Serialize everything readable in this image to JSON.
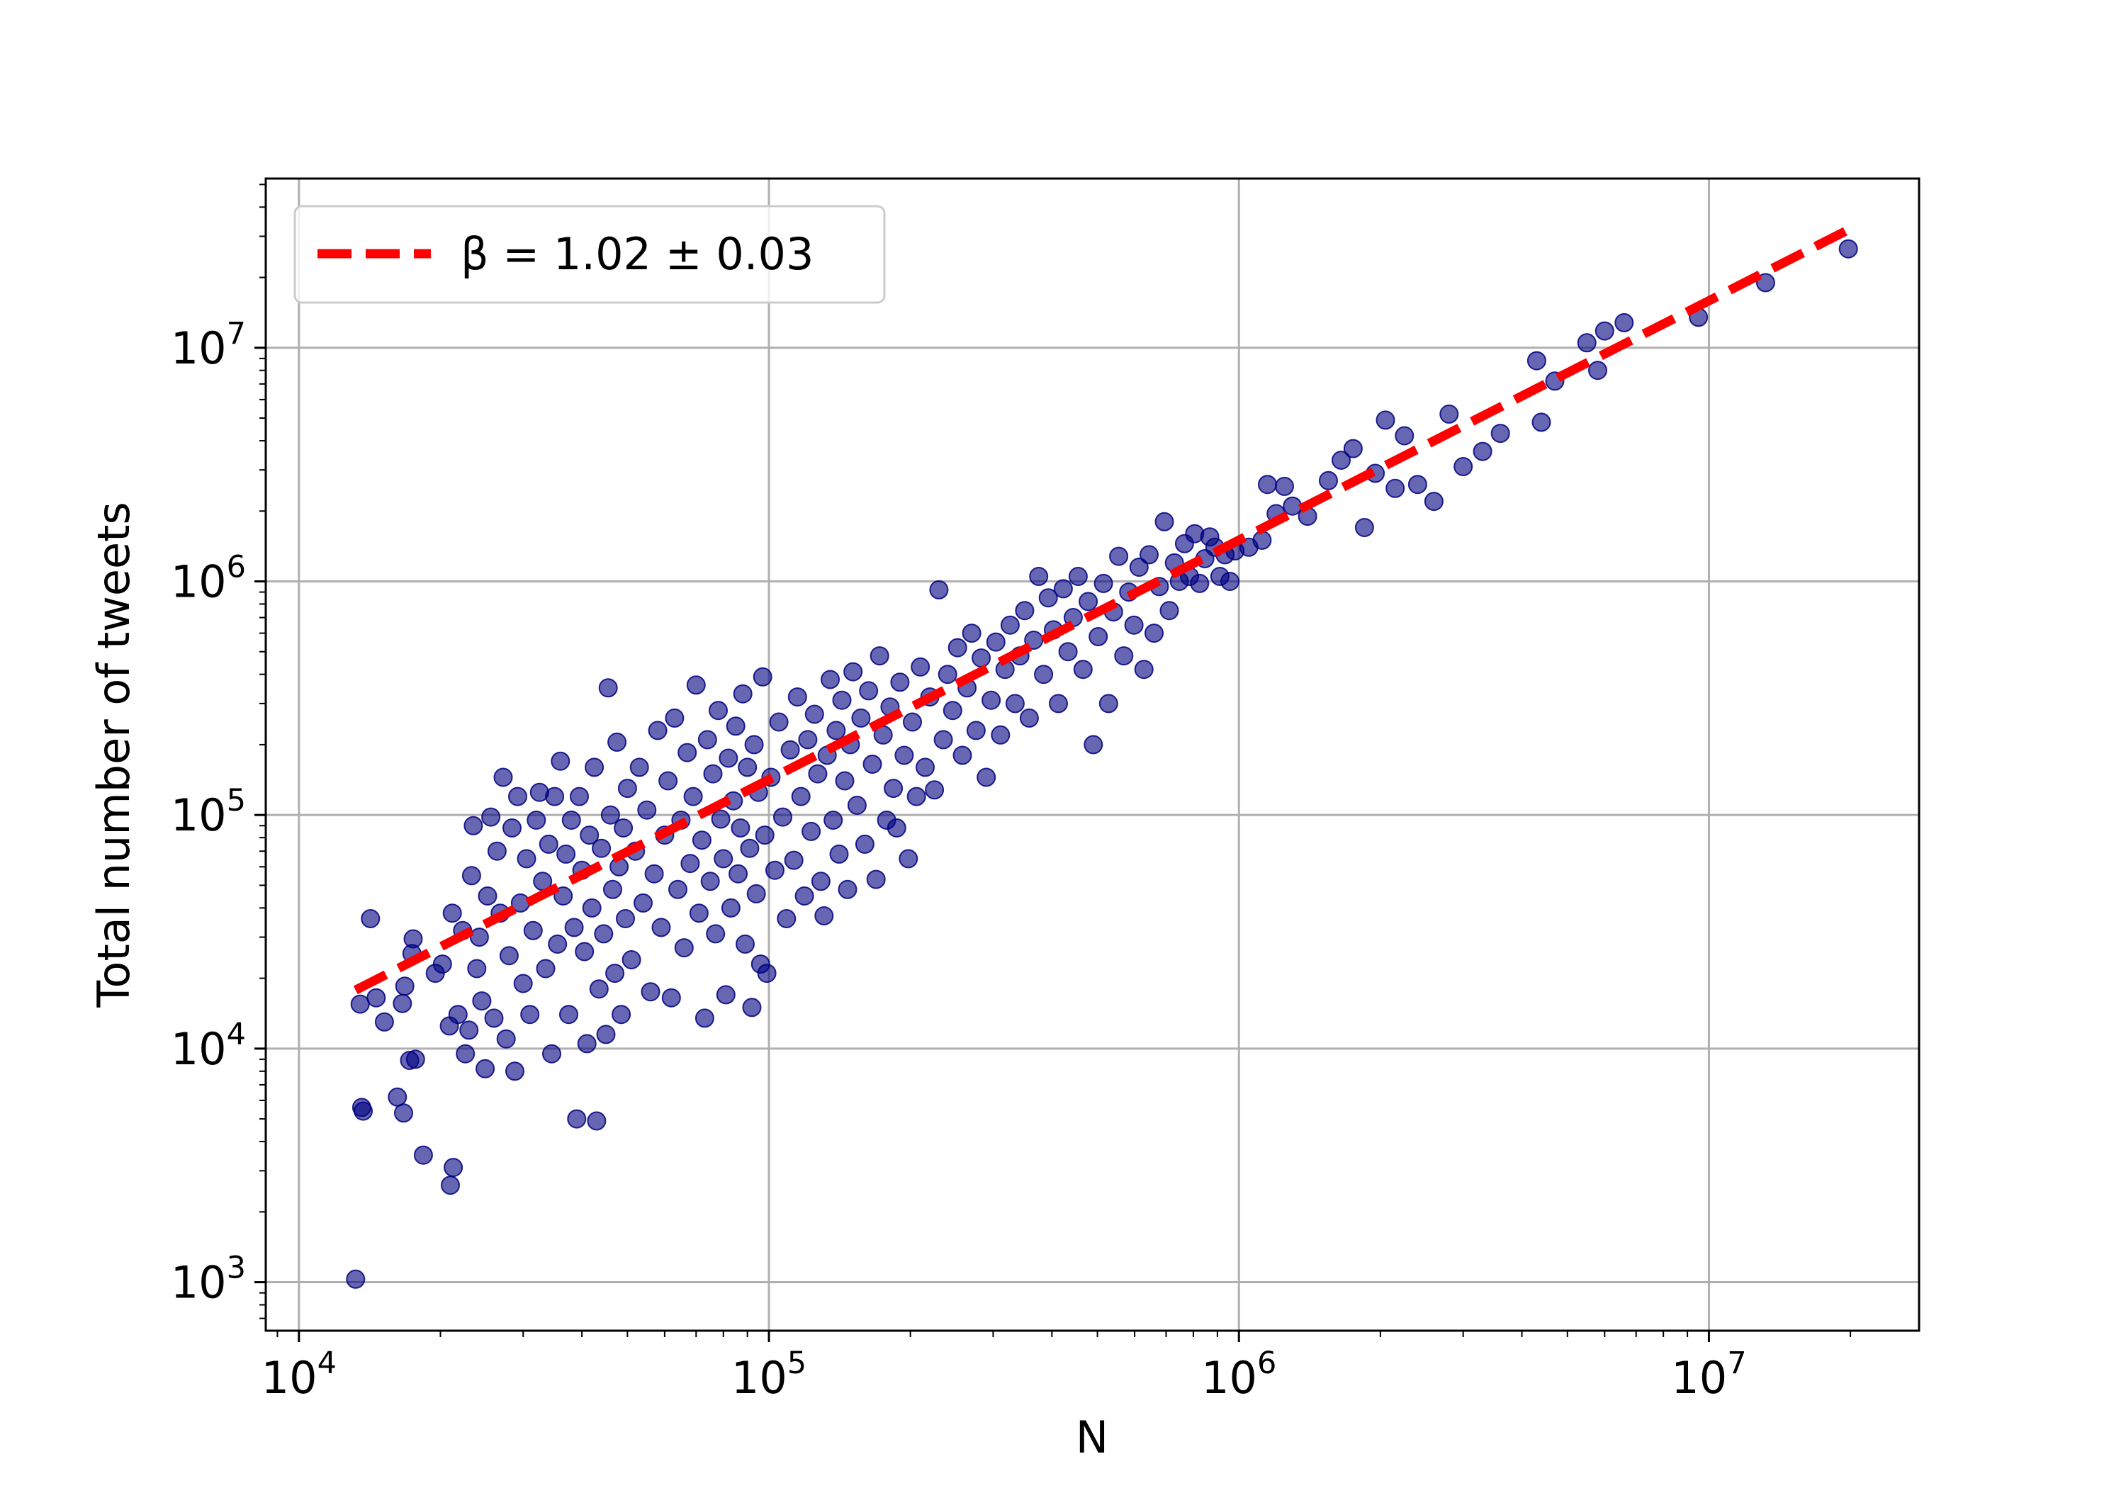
{
  "chart_data": {
    "type": "scatter",
    "xlabel": "N",
    "ylabel": "Total number of tweets",
    "xscale": "log",
    "yscale": "log",
    "xlim": [
      8500,
      28000000
    ],
    "ylim": [
      620,
      53000000
    ],
    "grid": true,
    "legend_position": "top-left",
    "x_ticks": [
      {
        "label": "10",
        "exp": "4",
        "value": 10000
      },
      {
        "label": "10",
        "exp": "5",
        "value": 100000
      },
      {
        "label": "10",
        "exp": "6",
        "value": 1000000
      },
      {
        "label": "10",
        "exp": "7",
        "value": 10000000
      }
    ],
    "y_ticks": [
      {
        "label": "10",
        "exp": "3",
        "value": 1000
      },
      {
        "label": "10",
        "exp": "4",
        "value": 10000
      },
      {
        "label": "10",
        "exp": "5",
        "value": 100000
      },
      {
        "label": "10",
        "exp": "6",
        "value": 1000000
      },
      {
        "label": "10",
        "exp": "7",
        "value": 10000000
      }
    ],
    "fit_line": {
      "label": "β = 1.02 ± 0.03",
      "color": "#ff0000",
      "style": "dashed",
      "x": [
        13200,
        19500000
      ],
      "y": [
        17800,
        31500000
      ]
    },
    "point_color": "#000080",
    "points": [
      [
        13200,
        1030
      ],
      [
        13500,
        15500
      ],
      [
        13600,
        5600
      ],
      [
        13700,
        5400
      ],
      [
        14200,
        36000
      ],
      [
        14600,
        16500
      ],
      [
        15200,
        13000
      ],
      [
        16200,
        6200
      ],
      [
        16600,
        15600
      ],
      [
        16800,
        18500
      ],
      [
        16700,
        5300
      ],
      [
        17200,
        8900
      ],
      [
        17400,
        25500
      ],
      [
        17500,
        29500
      ],
      [
        17700,
        9000
      ],
      [
        18400,
        3500
      ],
      [
        19500,
        21000
      ],
      [
        20200,
        23000
      ],
      [
        20900,
        12500
      ],
      [
        21000,
        2600
      ],
      [
        21200,
        38000
      ],
      [
        21300,
        3100
      ],
      [
        21800,
        14000
      ],
      [
        22300,
        32000
      ],
      [
        22600,
        9500
      ],
      [
        23000,
        12000
      ],
      [
        23300,
        55000
      ],
      [
        23500,
        90000
      ],
      [
        23900,
        22000
      ],
      [
        24200,
        30000
      ],
      [
        24500,
        16000
      ],
      [
        24900,
        8200
      ],
      [
        25200,
        45000
      ],
      [
        25600,
        98000
      ],
      [
        26000,
        13500
      ],
      [
        26400,
        70000
      ],
      [
        26800,
        38000
      ],
      [
        27200,
        145000
      ],
      [
        27600,
        11000
      ],
      [
        28000,
        25000
      ],
      [
        28400,
        88000
      ],
      [
        28800,
        8000
      ],
      [
        29200,
        120000
      ],
      [
        29600,
        42000
      ],
      [
        30000,
        19000
      ],
      [
        30500,
        65000
      ],
      [
        31000,
        14000
      ],
      [
        31500,
        32000
      ],
      [
        32000,
        95000
      ],
      [
        32500,
        125000
      ],
      [
        33000,
        52000
      ],
      [
        33500,
        22000
      ],
      [
        34000,
        75000
      ],
      [
        34500,
        9500
      ],
      [
        35000,
        120000
      ],
      [
        35500,
        28000
      ],
      [
        36000,
        170000
      ],
      [
        36500,
        45000
      ],
      [
        37000,
        68000
      ],
      [
        37500,
        14000
      ],
      [
        38000,
        95000
      ],
      [
        38500,
        33000
      ],
      [
        39000,
        5000
      ],
      [
        39500,
        120000
      ],
      [
        40000,
        58000
      ],
      [
        40500,
        26000
      ],
      [
        41000,
        10500
      ],
      [
        41500,
        82000
      ],
      [
        42000,
        40000
      ],
      [
        42500,
        160000
      ],
      [
        43000,
        4900
      ],
      [
        43500,
        18000
      ],
      [
        44000,
        72000
      ],
      [
        44500,
        31000
      ],
      [
        45000,
        11500
      ],
      [
        45500,
        350000
      ],
      [
        46000,
        100000
      ],
      [
        46500,
        48000
      ],
      [
        47000,
        21000
      ],
      [
        47500,
        205000
      ],
      [
        48000,
        60000
      ],
      [
        48500,
        14000
      ],
      [
        49000,
        88000
      ],
      [
        49500,
        36000
      ],
      [
        50000,
        130000
      ],
      [
        51000,
        24000
      ],
      [
        52000,
        70000
      ],
      [
        53000,
        160000
      ],
      [
        54000,
        42000
      ],
      [
        55000,
        105000
      ],
      [
        56000,
        17500
      ],
      [
        57000,
        56000
      ],
      [
        58000,
        230000
      ],
      [
        59000,
        33000
      ],
      [
        60000,
        82000
      ],
      [
        61000,
        140000
      ],
      [
        62000,
        16500
      ],
      [
        63000,
        260000
      ],
      [
        64000,
        48000
      ],
      [
        65000,
        95000
      ],
      [
        66000,
        27000
      ],
      [
        67000,
        185000
      ],
      [
        68000,
        62000
      ],
      [
        69000,
        120000
      ],
      [
        70000,
        360000
      ],
      [
        71000,
        38000
      ],
      [
        72000,
        78000
      ],
      [
        73000,
        13500
      ],
      [
        74000,
        210000
      ],
      [
        75000,
        52000
      ],
      [
        76000,
        150000
      ],
      [
        77000,
        31000
      ],
      [
        78000,
        280000
      ],
      [
        79000,
        96000
      ],
      [
        80000,
        65000
      ],
      [
        81000,
        17000
      ],
      [
        82000,
        175000
      ],
      [
        83000,
        40000
      ],
      [
        84000,
        115000
      ],
      [
        85000,
        240000
      ],
      [
        86000,
        56000
      ],
      [
        87000,
        88000
      ],
      [
        88000,
        330000
      ],
      [
        89000,
        28000
      ],
      [
        90000,
        160000
      ],
      [
        91000,
        72000
      ],
      [
        92000,
        15000
      ],
      [
        93000,
        200000
      ],
      [
        94000,
        46000
      ],
      [
        95000,
        125000
      ],
      [
        96000,
        23000
      ],
      [
        97000,
        390000
      ],
      [
        98000,
        82000
      ],
      [
        99000,
        21000
      ],
      [
        101000,
        145000
      ],
      [
        103000,
        58000
      ],
      [
        105000,
        250000
      ],
      [
        107000,
        98000
      ],
      [
        109000,
        36000
      ],
      [
        111000,
        190000
      ],
      [
        113000,
        64000
      ],
      [
        115000,
        320000
      ],
      [
        117000,
        120000
      ],
      [
        119000,
        45000
      ],
      [
        121000,
        210000
      ],
      [
        123000,
        85000
      ],
      [
        125000,
        270000
      ],
      [
        127000,
        150000
      ],
      [
        129000,
        52000
      ],
      [
        131000,
        37000
      ],
      [
        133000,
        180000
      ],
      [
        135000,
        380000
      ],
      [
        137000,
        95000
      ],
      [
        139000,
        230000
      ],
      [
        141000,
        68000
      ],
      [
        143000,
        310000
      ],
      [
        145000,
        140000
      ],
      [
        147000,
        48000
      ],
      [
        149000,
        200000
      ],
      [
        151000,
        410000
      ],
      [
        154000,
        110000
      ],
      [
        157000,
        260000
      ],
      [
        160000,
        75000
      ],
      [
        163000,
        340000
      ],
      [
        166000,
        165000
      ],
      [
        169000,
        53000
      ],
      [
        172000,
        480000
      ],
      [
        175000,
        220000
      ],
      [
        178000,
        95000
      ],
      [
        181000,
        290000
      ],
      [
        184000,
        130000
      ],
      [
        187000,
        88000
      ],
      [
        190000,
        370000
      ],
      [
        194000,
        180000
      ],
      [
        198000,
        65000
      ],
      [
        202000,
        250000
      ],
      [
        206000,
        120000
      ],
      [
        210000,
        430000
      ],
      [
        215000,
        160000
      ],
      [
        220000,
        320000
      ],
      [
        225000,
        128000
      ],
      [
        230000,
        920000
      ],
      [
        235000,
        210000
      ],
      [
        240000,
        400000
      ],
      [
        246000,
        280000
      ],
      [
        252000,
        520000
      ],
      [
        258000,
        180000
      ],
      [
        264000,
        350000
      ],
      [
        270000,
        600000
      ],
      [
        276000,
        230000
      ],
      [
        283000,
        470000
      ],
      [
        290000,
        145000
      ],
      [
        297000,
        310000
      ],
      [
        304000,
        550000
      ],
      [
        311000,
        220000
      ],
      [
        318000,
        420000
      ],
      [
        326000,
        650000
      ],
      [
        334000,
        300000
      ],
      [
        342000,
        480000
      ],
      [
        350000,
        750000
      ],
      [
        358000,
        260000
      ],
      [
        366000,
        560000
      ],
      [
        375000,
        1050000
      ],
      [
        384000,
        400000
      ],
      [
        393000,
        850000
      ],
      [
        403000,
        620000
      ],
      [
        413000,
        300000
      ],
      [
        423000,
        930000
      ],
      [
        433000,
        500000
      ],
      [
        444000,
        700000
      ],
      [
        455000,
        1050000
      ],
      [
        466000,
        420000
      ],
      [
        478000,
        820000
      ],
      [
        490000,
        200000
      ],
      [
        502000,
        580000
      ],
      [
        515000,
        980000
      ],
      [
        528000,
        300000
      ],
      [
        541000,
        740000
      ],
      [
        555000,
        1280000
      ],
      [
        569000,
        480000
      ],
      [
        583000,
        900000
      ],
      [
        598000,
        650000
      ],
      [
        613000,
        1150000
      ],
      [
        628000,
        420000
      ],
      [
        644000,
        1300000
      ],
      [
        660000,
        600000
      ],
      [
        677000,
        950000
      ],
      [
        694000,
        1800000
      ],
      [
        711000,
        750000
      ],
      [
        729000,
        1200000
      ],
      [
        747000,
        1000000
      ],
      [
        766000,
        1450000
      ],
      [
        785000,
        1050000
      ],
      [
        805000,
        1600000
      ],
      [
        825000,
        980000
      ],
      [
        846000,
        1250000
      ],
      [
        867000,
        1550000
      ],
      [
        889000,
        1400000
      ],
      [
        911000,
        1050000
      ],
      [
        934000,
        1300000
      ],
      [
        957000,
        1000000
      ],
      [
        981000,
        1350000
      ],
      [
        1050000,
        1400000
      ],
      [
        1120000,
        1500000
      ],
      [
        1150000,
        2600000
      ],
      [
        1200000,
        1950000
      ],
      [
        1250000,
        2550000
      ],
      [
        1300000,
        2100000
      ],
      [
        1400000,
        1900000
      ],
      [
        1550000,
        2700000
      ],
      [
        1650000,
        3300000
      ],
      [
        1750000,
        3700000
      ],
      [
        1850000,
        1700000
      ],
      [
        1950000,
        2900000
      ],
      [
        2050000,
        4900000
      ],
      [
        2150000,
        2500000
      ],
      [
        2250000,
        4200000
      ],
      [
        2400000,
        2600000
      ],
      [
        2600000,
        2200000
      ],
      [
        2800000,
        5200000
      ],
      [
        3000000,
        3100000
      ],
      [
        3300000,
        3600000
      ],
      [
        3600000,
        4300000
      ],
      [
        4300000,
        8800000
      ],
      [
        4400000,
        4800000
      ],
      [
        4700000,
        7200000
      ],
      [
        5500000,
        10500000
      ],
      [
        5800000,
        8000000
      ],
      [
        6000000,
        11800000
      ],
      [
        6600000,
        12800000
      ],
      [
        9500000,
        13500000
      ],
      [
        13200000,
        19000000
      ],
      [
        19800000,
        26500000
      ]
    ]
  }
}
